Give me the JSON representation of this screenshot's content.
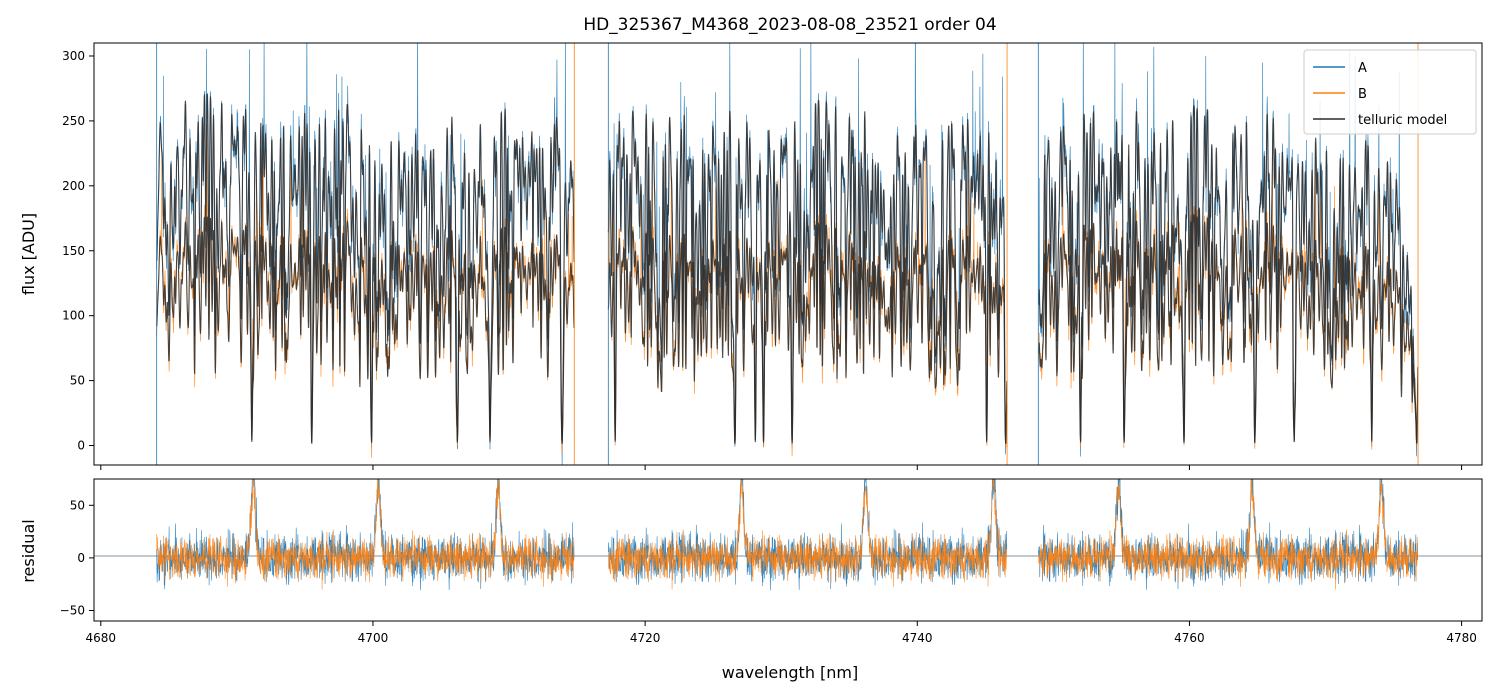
{
  "title": "HD_325367_M4368_2023-08-08_23521  order 04",
  "colors": {
    "A": "#1f77b4",
    "B": "#ff7f0e",
    "telluric": "#2b2b2b",
    "zero_line": "#5a6b7b",
    "frame": "#000000"
  },
  "chart_data": [
    {
      "type": "line",
      "panel": "flux",
      "xlabel": "",
      "ylabel": "flux [ADU]",
      "xlim": [
        4679.5,
        4781.5
      ],
      "ylim": [
        -15,
        310
      ],
      "yticks": [
        "0",
        "50",
        "100",
        "150",
        "200",
        "250",
        "300"
      ],
      "ytick_values": [
        0,
        50,
        100,
        150,
        200,
        250,
        300
      ],
      "xticks": [
        4680,
        4700,
        4720,
        4740,
        4760,
        4780
      ],
      "x_tick_labels_shown": false,
      "legend": {
        "placement": "top-right",
        "entries": [
          {
            "label": "A",
            "color": "#1f77b4"
          },
          {
            "label": "B",
            "color": "#ff7f0e"
          },
          {
            "label": "telluric model",
            "color": "#2b2b2b"
          }
        ]
      },
      "data_segments": [
        {
          "x_start": 4684.1,
          "x_end": 4714.8
        },
        {
          "x_start": 4717.3,
          "x_end": 4746.6
        },
        {
          "x_start": 4748.9,
          "x_end": 4776.8
        }
      ],
      "series": [
        {
          "name": "A",
          "continuum_points": [
            [
              4684.1,
              278
            ],
            [
              4691,
              272
            ],
            [
              4695,
              262
            ],
            [
              4700,
              265
            ],
            [
              4710,
              262
            ],
            [
              4714.8,
              258
            ],
            [
              4717.3,
              258
            ],
            [
              4725,
              262
            ],
            [
              4735,
              268
            ],
            [
              4740,
              262
            ],
            [
              4746.6,
              252
            ],
            [
              4748.9,
              258
            ],
            [
              4760,
              262
            ],
            [
              4770,
              258
            ],
            [
              4775,
              225
            ],
            [
              4776.8,
              100
            ]
          ]
        },
        {
          "name": "B",
          "continuum_points": [
            [
              4684.1,
              180
            ],
            [
              4691,
              178
            ],
            [
              4695,
              170
            ],
            [
              4700,
              175
            ],
            [
              4710,
              170
            ],
            [
              4714.8,
              165
            ],
            [
              4717.3,
              165
            ],
            [
              4725,
              168
            ],
            [
              4735,
              172
            ],
            [
              4740,
              168
            ],
            [
              4746.6,
              162
            ],
            [
              4748.9,
              170
            ],
            [
              4760,
              178
            ],
            [
              4770,
              172
            ],
            [
              4775,
              145
            ],
            [
              4776.8,
              80
            ]
          ]
        },
        {
          "name": "telluric model",
          "follows": [
            "A",
            "B"
          ]
        }
      ],
      "deep_absorption_lines": [
        4691.1,
        4695.5,
        4699.9,
        4706.2,
        4708.6,
        4713.9,
        4717.8,
        4726.6,
        4728.1,
        4728.7,
        4730.8,
        4745.1,
        4746.5,
        4752.0,
        4755.2,
        4759.6,
        4764.8,
        4767.7,
        4773.4,
        4776.7
      ]
    },
    {
      "type": "line",
      "panel": "residual",
      "xlabel": "wavelength [nm]",
      "ylabel": "residual",
      "xlim": [
        4679.5,
        4781.5
      ],
      "ylim": [
        -60,
        75
      ],
      "yticks": [
        "−50",
        "0",
        "50"
      ],
      "ytick_values": [
        -50,
        0,
        50
      ],
      "xticks": [
        "4680",
        "4700",
        "4720",
        "4740",
        "4760",
        "4780"
      ],
      "xtick_values": [
        4680,
        4700,
        4720,
        4740,
        4760,
        4780
      ],
      "zero_line": 0,
      "series": [
        {
          "name": "A",
          "noise_amplitude": 25
        },
        {
          "name": "B",
          "noise_amplitude": 22
        }
      ],
      "spikes": [
        4691.2,
        4700.4,
        4709.2,
        4727.1,
        4736.2,
        4745.6,
        4754.8,
        4764.6,
        4774.1
      ]
    }
  ]
}
